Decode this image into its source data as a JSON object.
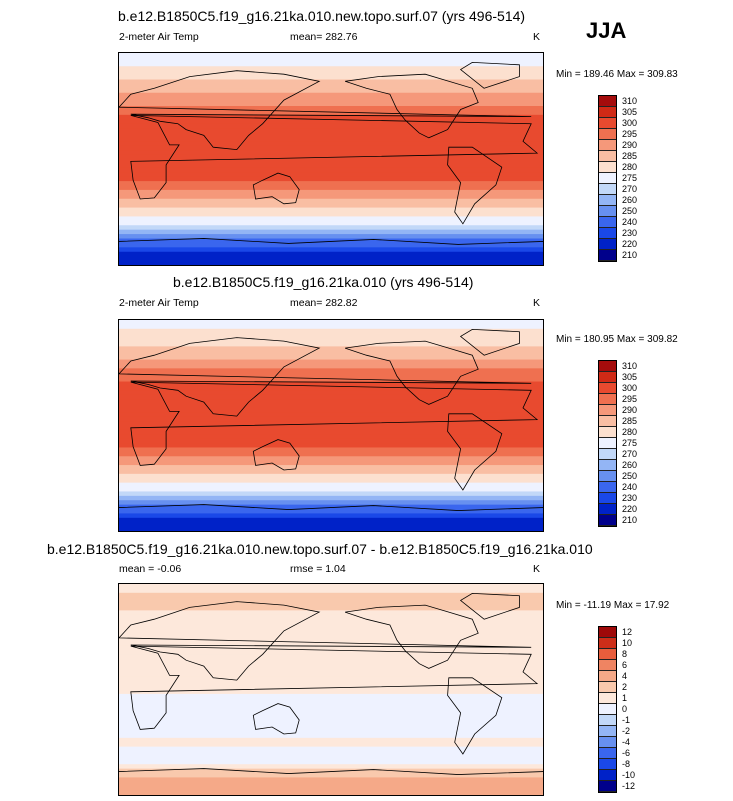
{
  "season": "JJA",
  "units": "K",
  "colors": {
    "abs_palette": [
      "#00008b",
      "#0022c8",
      "#1a48e8",
      "#3a66ee",
      "#6790f0",
      "#93b5f5",
      "#c2d8f8",
      "#eef2ff",
      "#fce0cf",
      "#f9bea3",
      "#f5987a",
      "#ef7050",
      "#e84a2f",
      "#d02a16",
      "#a50c0c"
    ],
    "diff_palette": [
      "#00008b",
      "#0022c8",
      "#1a48e8",
      "#3a66ee",
      "#6790f0",
      "#93b5f5",
      "#c2d8f8",
      "#eef2ff",
      "#fde8db",
      "#f9c9ad",
      "#f5a988",
      "#ef8462",
      "#e85d3c",
      "#cd2e19",
      "#9e0909"
    ]
  },
  "panels": [
    {
      "title": "b.e12.B1850C5.f19_g16.21ka.010.new.topo.surf.07 (yrs 496-514)",
      "variable": "2-meter Air Temp",
      "mean_text": "mean= 282.76",
      "units": "K",
      "minmax": "Min = 189.46 Max = 309.83",
      "colorbar_labels": [
        "310",
        "305",
        "300",
        "295",
        "290",
        "285",
        "280",
        "275",
        "270",
        "260",
        "250",
        "240",
        "230",
        "220",
        "210"
      ]
    },
    {
      "title": "b.e12.B1850C5.f19_g16.21ka.010 (yrs 496-514)",
      "variable": "2-meter Air Temp",
      "mean_text": "mean= 282.82",
      "units": "K",
      "minmax": "Min = 180.95 Max = 309.82",
      "colorbar_labels": [
        "310",
        "305",
        "300",
        "295",
        "290",
        "285",
        "280",
        "275",
        "270",
        "260",
        "250",
        "240",
        "230",
        "220",
        "210"
      ]
    },
    {
      "title": "b.e12.B1850C5.f19_g16.21ka.010.new.topo.surf.07 - b.e12.B1850C5.f19_g16.21ka.010",
      "variable": "mean =  -0.06",
      "mean_text": "rmse =   1.04",
      "units": "K",
      "minmax": "Min = -11.19 Max =  17.92",
      "colorbar_labels": [
        "12",
        "10",
        "8",
        "6",
        "4",
        "2",
        "1",
        "0",
        "-1",
        "-2",
        "-4",
        "-6",
        "-8",
        "-10",
        "-12"
      ]
    }
  ],
  "chart_data": [
    {
      "type": "heatmap",
      "title": "b.e12.B1850C5.f19_g16.21ka.010.new.topo.surf.07 (yrs 496-514)",
      "variable": "2-meter Air Temp",
      "units": "K",
      "mean": 282.76,
      "min": 189.46,
      "max": 309.83,
      "levels": [
        210,
        220,
        230,
        240,
        250,
        260,
        270,
        275,
        280,
        285,
        290,
        295,
        300,
        305,
        310
      ],
      "zonal_bands_lat_to_temp": [
        [
          90,
          272
        ],
        [
          75,
          276
        ],
        [
          60,
          283
        ],
        [
          45,
          290
        ],
        [
          30,
          298
        ],
        [
          15,
          300
        ],
        [
          0,
          299
        ],
        [
          -15,
          296
        ],
        [
          -30,
          288
        ],
        [
          -45,
          278
        ],
        [
          -55,
          270
        ],
        [
          -60,
          262
        ],
        [
          -65,
          248
        ],
        [
          -70,
          235
        ],
        [
          -80,
          220
        ],
        [
          -90,
          212
        ]
      ]
    },
    {
      "type": "heatmap",
      "title": "b.e12.B1850C5.f19_g16.21ka.010 (yrs 496-514)",
      "variable": "2-meter Air Temp",
      "units": "K",
      "mean": 282.82,
      "min": 180.95,
      "max": 309.82,
      "levels": [
        210,
        220,
        230,
        240,
        250,
        260,
        270,
        275,
        280,
        285,
        290,
        295,
        300,
        305,
        310
      ],
      "zonal_bands_lat_to_temp": [
        [
          90,
          273
        ],
        [
          75,
          277
        ],
        [
          60,
          284
        ],
        [
          45,
          291
        ],
        [
          30,
          298
        ],
        [
          15,
          300
        ],
        [
          0,
          299
        ],
        [
          -15,
          296
        ],
        [
          -30,
          288
        ],
        [
          -45,
          278
        ],
        [
          -55,
          270
        ],
        [
          -60,
          262
        ],
        [
          -65,
          248
        ],
        [
          -70,
          235
        ],
        [
          -80,
          220
        ],
        [
          -90,
          211
        ]
      ]
    },
    {
      "type": "heatmap",
      "title": "b.e12.B1850C5.f19_g16.21ka.010.new.topo.surf.07 - b.e12.B1850C5.f19_g16.21ka.010",
      "units": "K",
      "mean": -0.06,
      "rmse": 1.04,
      "min": -11.19,
      "max": 17.92,
      "levels": [
        -12,
        -10,
        -8,
        -6,
        -4,
        -2,
        -1,
        0,
        1,
        2,
        4,
        6,
        8,
        10,
        12
      ],
      "zonal_bands_lat_to_diff": [
        [
          90,
          0.5
        ],
        [
          75,
          1.5
        ],
        [
          60,
          0.5
        ],
        [
          45,
          0.3
        ],
        [
          30,
          0.5
        ],
        [
          15,
          0.2
        ],
        [
          0,
          0.1
        ],
        [
          -15,
          -0.3
        ],
        [
          -30,
          -0.5
        ],
        [
          -45,
          0.2
        ],
        [
          -60,
          -0.5
        ],
        [
          -70,
          1.5
        ],
        [
          -80,
          3
        ],
        [
          -90,
          2
        ]
      ]
    }
  ]
}
